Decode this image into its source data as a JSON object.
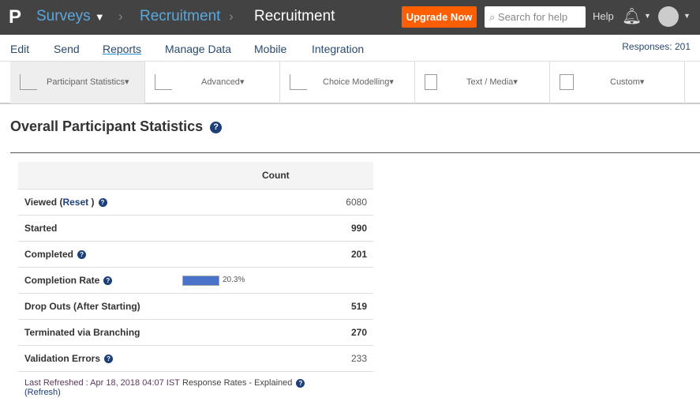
{
  "header": {
    "logo": "P",
    "crumbs": [
      "Surveys",
      "Recruitment",
      "Recruitment"
    ],
    "upgrade": "Upgrade Now",
    "search_placeholder": "Search for help",
    "help": "Help"
  },
  "nav": {
    "items": [
      "Edit",
      "Send",
      "Reports",
      "Manage Data",
      "Mobile",
      "Integration"
    ],
    "active": "Reports",
    "responses": "Responses: 201"
  },
  "toolbar": [
    "Participant Statistics",
    "Advanced",
    "Choice Modelling",
    "Text / Media",
    "Custom"
  ],
  "page": {
    "title": "Overall Participant Statistics"
  },
  "table": {
    "header": "Count",
    "rows": [
      {
        "label": "Viewed (",
        "link": "Reset",
        "close": ")",
        "value": "6080"
      },
      {
        "label": "Started",
        "value": "990"
      },
      {
        "label": "Completed",
        "value": "201"
      },
      {
        "label": "Completion Rate",
        "rate": "20.3%",
        "rate_value": 20.3
      },
      {
        "label": "Drop Outs (After Starting)",
        "value": "519"
      },
      {
        "label": "Terminated via Branching",
        "value": "270"
      },
      {
        "label": "Validation Errors",
        "value": "233"
      }
    ]
  },
  "footer": {
    "refreshed": "Last Refreshed : Apr 18, 2018 04:07 IST",
    "refresh": "(Refresh)",
    "explained": "Response Rates - Explained"
  },
  "colors": {
    "header": "#434343",
    "upgrade": "#ff5f00",
    "bar": "#4a72c9",
    "link": "#1c3f7a"
  }
}
